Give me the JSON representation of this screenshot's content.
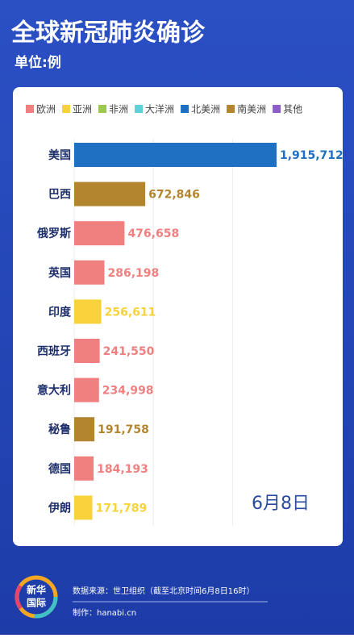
{
  "chart_data": {
    "type": "bar",
    "orientation": "horizontal",
    "title": "全球新冠肺炎确诊",
    "subtitle": "单位:例",
    "legend": [
      {
        "name": "欧洲",
        "color": "#f08080"
      },
      {
        "name": "亚洲",
        "color": "#f7d23a"
      },
      {
        "name": "非洲",
        "color": "#9cc94b"
      },
      {
        "name": "大洋洲",
        "color": "#5fd0d8"
      },
      {
        "name": "北美洲",
        "color": "#1f6fc2"
      },
      {
        "name": "南美洲",
        "color": "#b3852f"
      },
      {
        "name": "其他",
        "color": "#8b5ec8"
      }
    ],
    "categories": [
      "美国",
      "巴西",
      "俄罗斯",
      "英国",
      "印度",
      "西班牙",
      "意大利",
      "秘鲁",
      "德国",
      "伊朗"
    ],
    "values": [
      1915712,
      672846,
      476658,
      286198,
      256611,
      241550,
      234998,
      191758,
      184193,
      171789
    ],
    "value_labels": [
      "1,915,712",
      "672,846",
      "476,658",
      "286,198",
      "256,611",
      "241,550",
      "234,998",
      "191,758",
      "184,193",
      "171,789"
    ],
    "colors": [
      "#1f6fc2",
      "#b3852f",
      "#f08080",
      "#f08080",
      "#f7d23a",
      "#f08080",
      "#f08080",
      "#b3852f",
      "#f08080",
      "#f7d23a"
    ],
    "xlim": [
      0,
      2000000
    ],
    "xticks": [
      0,
      750000,
      1500000
    ],
    "grid": true,
    "annotation": "6月8日"
  },
  "footer": {
    "logo": [
      "新华",
      "国际"
    ],
    "source": "数据来源：世卫组织（截至北京时间6月8日16时）",
    "credit": "制作：hanabi.cn"
  }
}
